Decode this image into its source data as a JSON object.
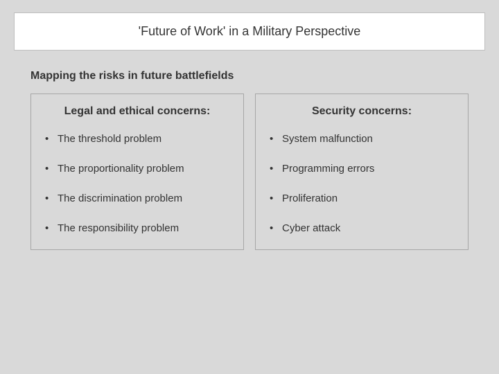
{
  "slide": {
    "title": "'Future of Work' in a Military Perspective",
    "subtitle": "Mapping the risks in future battlefields",
    "columns": [
      {
        "heading": "Legal and ethical concerns:",
        "items": [
          "The threshold problem",
          "The proportionality problem",
          "The discrimination problem",
          "The responsibility problem"
        ]
      },
      {
        "heading": "Security concerns:",
        "items": [
          "System malfunction",
          "Programming errors",
          "Proliferation",
          "Cyber attack"
        ]
      }
    ],
    "style": {
      "background": "#d9d9d9",
      "titlebar_bg": "#ffffff",
      "titlebar_border": "#bfbfbf",
      "column_border": "#a6a6a6",
      "text_color": "#333333",
      "title_fontsize": 18,
      "subtitle_fontsize": 16,
      "col_title_fontsize": 16,
      "item_fontsize": 15
    }
  }
}
